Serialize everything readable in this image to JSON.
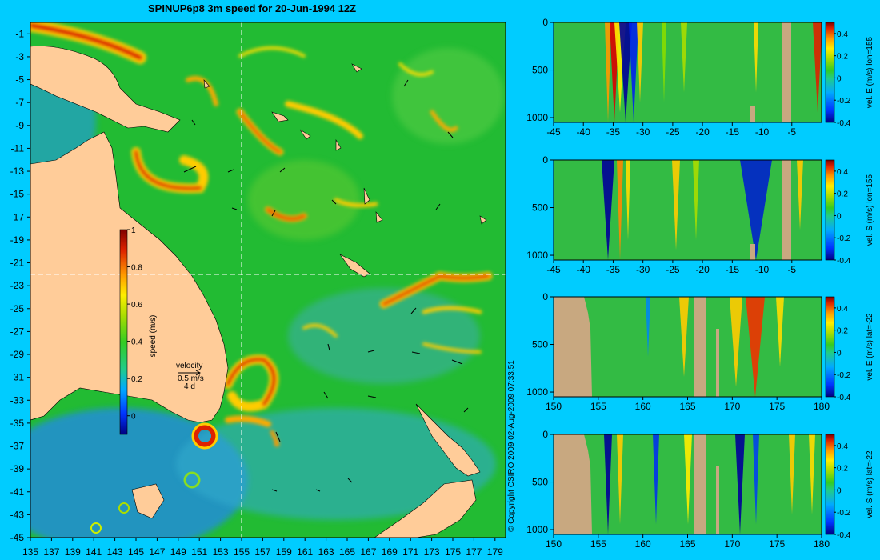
{
  "title": "SPINUP6p8 3m speed for 20-Jun-1994 12Z",
  "copyright": "© Copyright CSIRO 2009   02-Aug-2009 07:33:51",
  "colors": {
    "background": "#00ccff",
    "land": "#ffcc99",
    "section_land": "#c8a880",
    "ocean_base": "#22bb33"
  },
  "map": {
    "xticks": [
      "135",
      "137",
      "139",
      "141",
      "143",
      "145",
      "147",
      "149",
      "151",
      "153",
      "155",
      "157",
      "159",
      "161",
      "163",
      "165",
      "167",
      "169",
      "171",
      "173",
      "175",
      "177",
      "179"
    ],
    "yticks": [
      "-1",
      "-3",
      "-5",
      "-7",
      "-9",
      "-11",
      "-13",
      "-15",
      "-17",
      "-19",
      "-21",
      "-23",
      "-25",
      "-27",
      "-29",
      "-31",
      "-33",
      "-35",
      "-37",
      "-39",
      "-41",
      "-43",
      "-45"
    ],
    "speed_colorbar": {
      "label": "speed (m/s)",
      "ticks": [
        "1",
        "0.8",
        "0.6",
        "0.4",
        "0.2",
        "0"
      ]
    },
    "velocity_key": {
      "title": "velocity",
      "speed": "0.5 m/s",
      "duration": "4 d"
    }
  },
  "sections": [
    {
      "label": "vel. E (m/s) lon=155",
      "xticks": [
        "-45",
        "-40",
        "-35",
        "-30",
        "-25",
        "-20",
        "-15",
        "-10",
        "-5"
      ],
      "yticks": [
        "0",
        "500",
        "1000"
      ],
      "cticks": [
        "0.4",
        "0.2",
        "0",
        "-0.2",
        "-0.4"
      ]
    },
    {
      "label": "vel. S (m/s) lon=155",
      "xticks": [
        "-45",
        "-40",
        "-35",
        "-30",
        "-25",
        "-20",
        "-15",
        "-10",
        "-5"
      ],
      "yticks": [
        "0",
        "500",
        "1000"
      ],
      "cticks": [
        "0.4",
        "0.2",
        "0",
        "-0.2",
        "-0.4"
      ]
    },
    {
      "label": "vel. E (m/s) lat=-22",
      "xticks": [
        "150",
        "155",
        "160",
        "165",
        "170",
        "175",
        "180"
      ],
      "yticks": [
        "0",
        "500",
        "1000"
      ],
      "cticks": [
        "0.4",
        "0.2",
        "0",
        "-0.2",
        "-0.4"
      ]
    },
    {
      "label": "vel. S (m/s) lat=-22",
      "xticks": [
        "150",
        "155",
        "160",
        "165",
        "170",
        "175",
        "180"
      ],
      "yticks": [
        "0",
        "500",
        "1000"
      ],
      "cticks": [
        "0.4",
        "0.2",
        "0",
        "-0.2",
        "-0.4"
      ]
    }
  ],
  "chart_data": [
    {
      "type": "heatmap",
      "title": "SPINUP6p8 3m speed for 20-Jun-1994 12Z",
      "xlim": [
        135,
        180
      ],
      "ylim": [
        -45,
        0
      ],
      "colorbar_label": "speed (m/s)",
      "colorbar_range": [
        -0.1,
        1.0
      ],
      "section_lines": {
        "lon": 155,
        "lat": -22
      }
    },
    {
      "type": "heatmap",
      "label": "vel. E (m/s) lon=155",
      "xlim": [
        -45,
        0
      ],
      "ylim": [
        1050,
        0
      ],
      "colorbar_range": [
        -0.4,
        0.5
      ]
    },
    {
      "type": "heatmap",
      "label": "vel. S (m/s) lon=155",
      "xlim": [
        -45,
        0
      ],
      "ylim": [
        1050,
        0
      ],
      "colorbar_range": [
        -0.4,
        0.5
      ]
    },
    {
      "type": "heatmap",
      "label": "vel. E (m/s) lat=-22",
      "xlim": [
        150,
        180
      ],
      "ylim": [
        1050,
        0
      ],
      "colorbar_range": [
        -0.4,
        0.5
      ]
    },
    {
      "type": "heatmap",
      "label": "vel. S (m/s) lat=-22",
      "xlim": [
        150,
        180
      ],
      "ylim": [
        1050,
        0
      ],
      "colorbar_range": [
        -0.4,
        0.5
      ]
    }
  ]
}
